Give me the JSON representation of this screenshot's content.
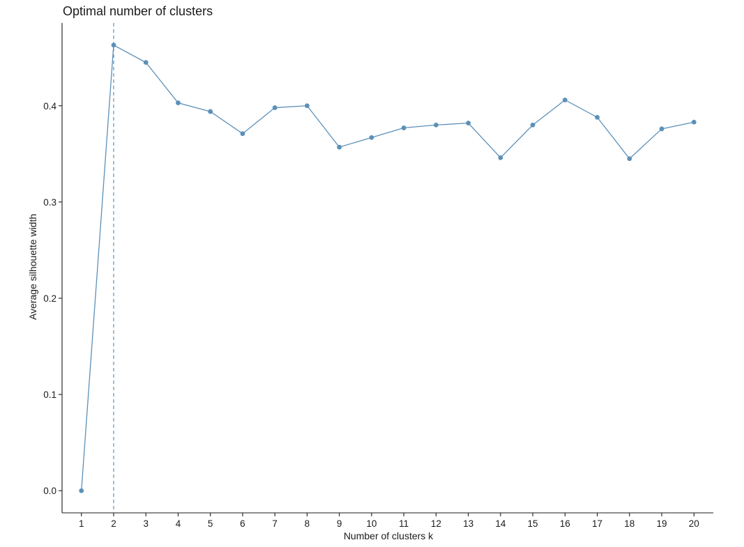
{
  "chart_data": {
    "type": "line",
    "title": "Optimal number of clusters",
    "xlabel": "Number of clusters k",
    "ylabel": "Average silhouette width",
    "x": [
      1,
      2,
      3,
      4,
      5,
      6,
      7,
      8,
      9,
      10,
      11,
      12,
      13,
      14,
      15,
      16,
      17,
      18,
      19,
      20
    ],
    "xticks": [
      "1",
      "2",
      "3",
      "4",
      "5",
      "6",
      "7",
      "8",
      "9",
      "10",
      "11",
      "12",
      "13",
      "14",
      "15",
      "16",
      "17",
      "18",
      "19",
      "20"
    ],
    "values": [
      0.0,
      0.463,
      0.445,
      0.403,
      0.394,
      0.371,
      0.398,
      0.4,
      0.357,
      0.367,
      0.377,
      0.38,
      0.382,
      0.346,
      0.38,
      0.406,
      0.388,
      0.345,
      0.376,
      0.383
    ],
    "yticks": [
      "0.0",
      "0.1",
      "0.2",
      "0.3",
      "0.4"
    ],
    "ytick_values": [
      0.0,
      0.1,
      0.2,
      0.3,
      0.4
    ],
    "xlim": [
      0.4,
      20.6
    ],
    "ylim": [
      -0.023,
      0.486
    ],
    "optimal_k": 2,
    "grid": false,
    "legend": "none",
    "colors": {
      "series": "#5b90b8",
      "axis": "#1a1a1a",
      "text": "#1a1a1a"
    }
  }
}
